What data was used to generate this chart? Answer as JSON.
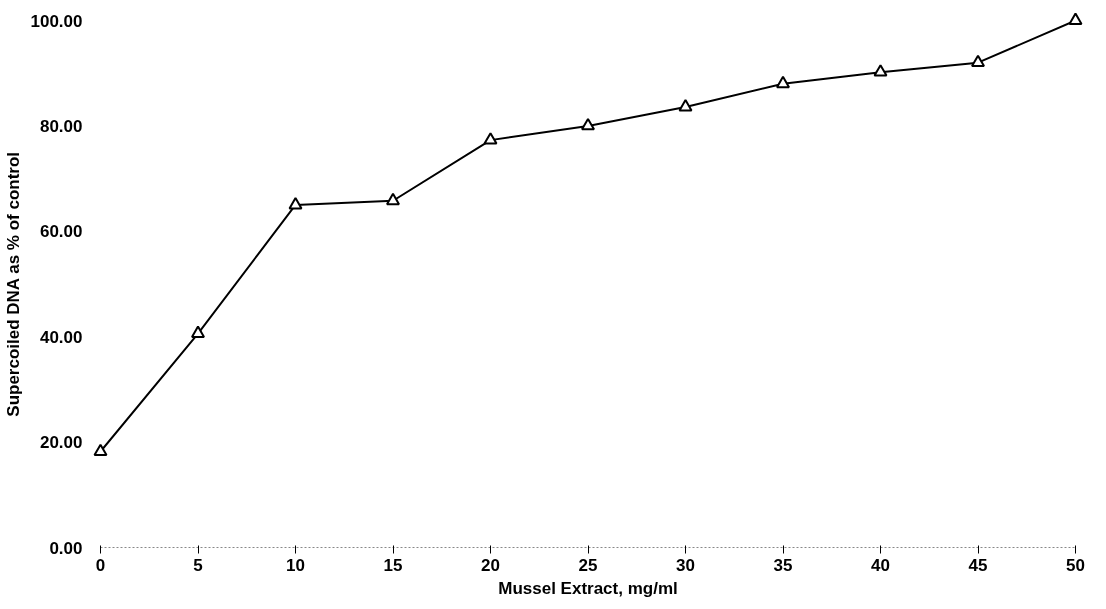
{
  "chart_data": {
    "type": "line",
    "xlabel": "Mussel Extract, mg/ml",
    "ylabel": "Supercoiled DNA as % of control",
    "x": [
      0,
      5,
      10,
      15,
      20,
      25,
      30,
      35,
      40,
      45,
      50
    ],
    "series": [
      {
        "color": "#000000",
        "values": [
          18.2,
          40.6,
          65.0,
          65.8,
          77.3,
          80.0,
          83.6,
          88.0,
          90.2,
          92.0,
          100.0
        ]
      }
    ],
    "xlim": [
      0,
      50
    ],
    "xticks": [
      0,
      5,
      10,
      15,
      20,
      25,
      30,
      35,
      40,
      45,
      50
    ],
    "ylim": [
      0,
      100
    ],
    "yticks": [
      {
        "value": 0,
        "label": "0.00"
      },
      {
        "value": 20,
        "label": "20.00"
      },
      {
        "value": 40,
        "label": "40.00"
      },
      {
        "value": 60,
        "label": "60.00"
      },
      {
        "value": 80,
        "label": "80.00"
      },
      {
        "value": 100,
        "label": "100.00"
      }
    ],
    "grid": false,
    "marker": "triangle",
    "line_style": "solid"
  }
}
